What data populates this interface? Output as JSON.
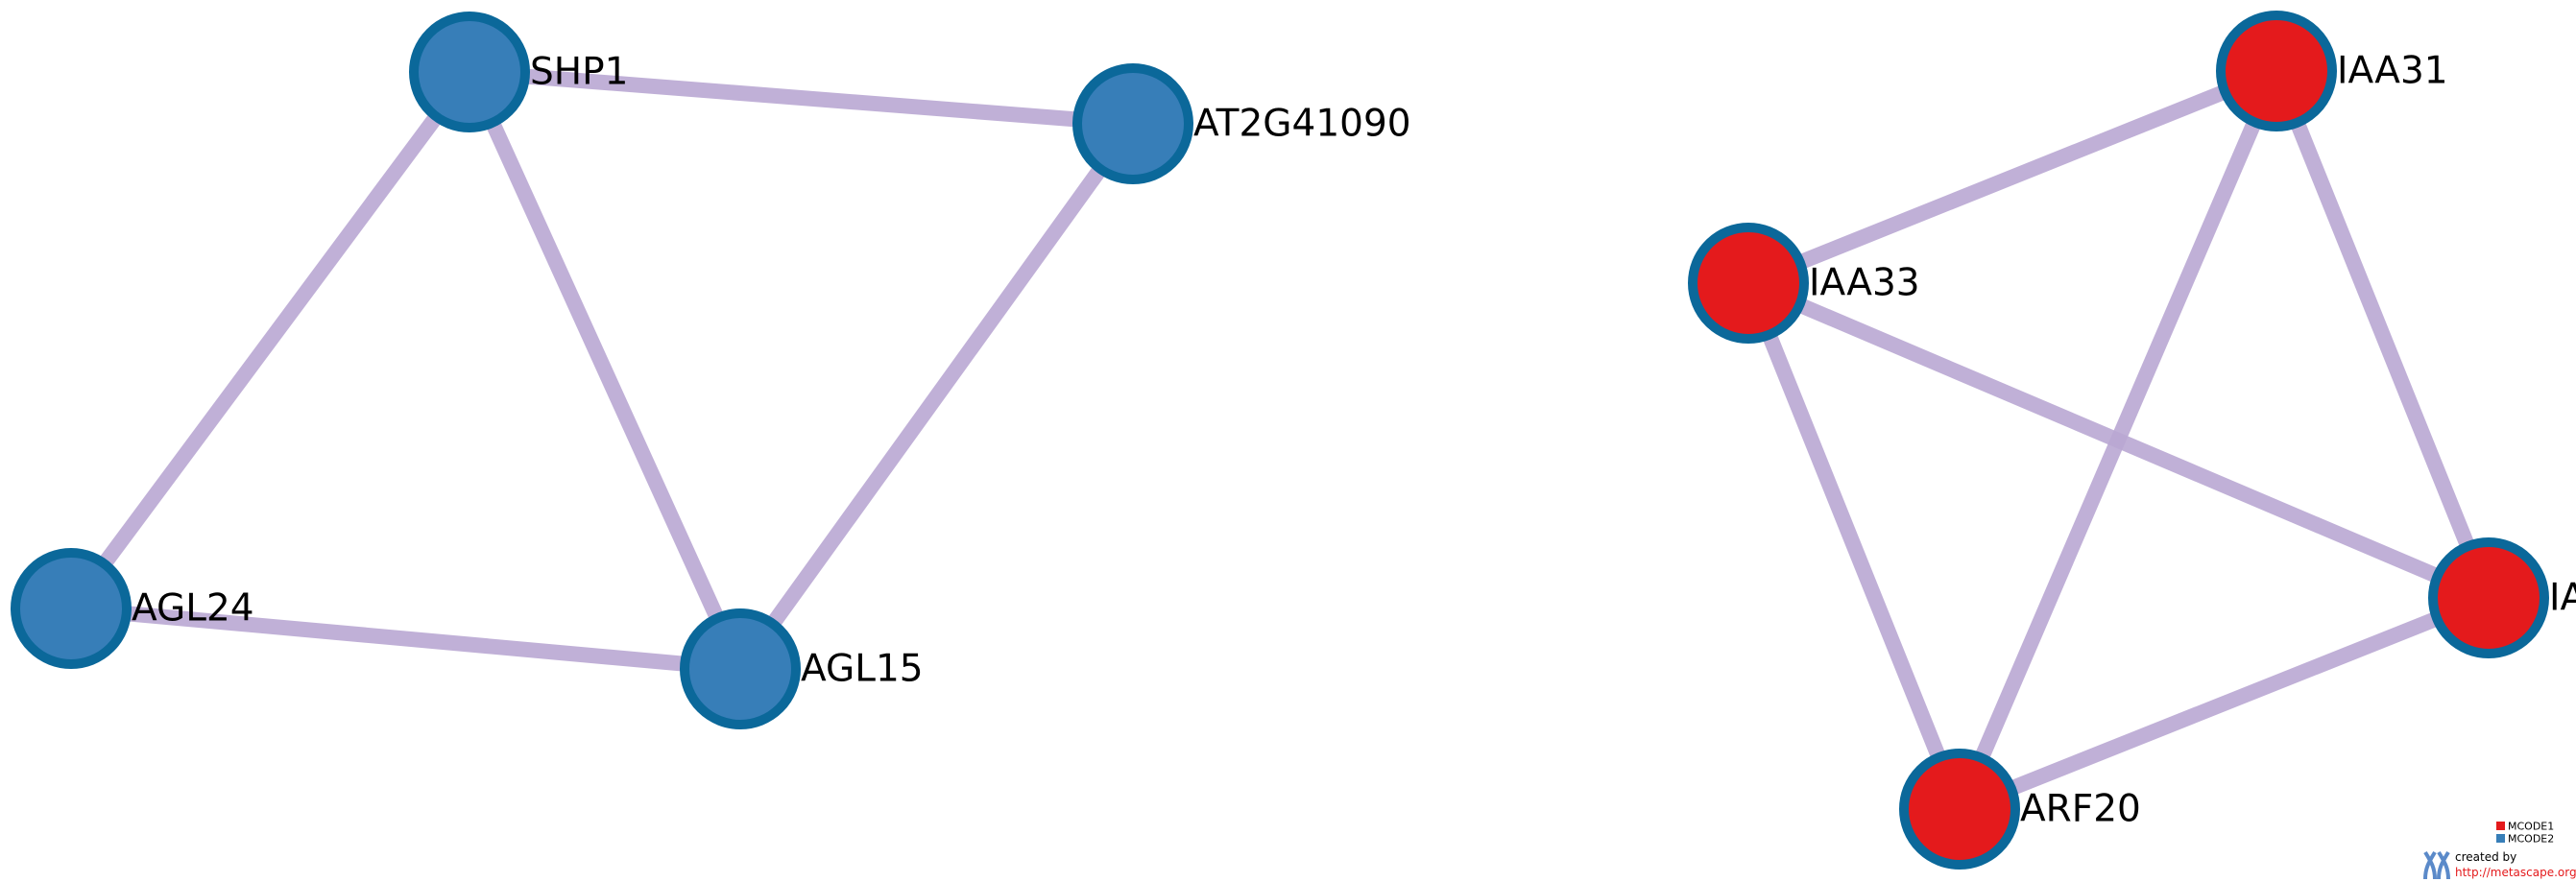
{
  "nodes": [
    {
      "id": "SHP1",
      "label": "SHP1",
      "cluster": "MCODE2"
    },
    {
      "id": "AT2G41090",
      "label": "AT2G41090",
      "cluster": "MCODE2"
    },
    {
      "id": "AGL24",
      "label": "AGL24",
      "cluster": "MCODE2"
    },
    {
      "id": "AGL15",
      "label": "AGL15",
      "cluster": "MCODE2"
    },
    {
      "id": "IAA31",
      "label": "IAA31",
      "cluster": "MCODE1"
    },
    {
      "id": "IAA33",
      "label": "IAA33",
      "cluster": "MCODE1"
    },
    {
      "id": "IA_clipped",
      "label": "IA",
      "cluster": "MCODE1"
    },
    {
      "id": "ARF20",
      "label": "ARF20",
      "cluster": "MCODE1"
    }
  ],
  "edges": [
    {
      "source": "SHP1",
      "target": "AT2G41090"
    },
    {
      "source": "SHP1",
      "target": "AGL24"
    },
    {
      "source": "SHP1",
      "target": "AGL15"
    },
    {
      "source": "AT2G41090",
      "target": "AGL15"
    },
    {
      "source": "AGL24",
      "target": "AGL15"
    },
    {
      "source": "IAA33",
      "target": "IAA31"
    },
    {
      "source": "IAA33",
      "target": "IA_clipped"
    },
    {
      "source": "IAA33",
      "target": "ARF20"
    },
    {
      "source": "IAA31",
      "target": "ARF20"
    },
    {
      "source": "IAA31",
      "target": "IA_clipped"
    },
    {
      "source": "IA_clipped",
      "target": "ARF20"
    }
  ],
  "clusters": {
    "MCODE1": {
      "fill": "#e41a1c"
    },
    "MCODE2": {
      "fill": "#377eb8"
    }
  },
  "style": {
    "node_border": "#0b689a",
    "edge_color": "#b9a7d3"
  },
  "legend": [
    {
      "label": "MCODE1",
      "color": "#e41a1c"
    },
    {
      "label": "MCODE2",
      "color": "#377eb8"
    }
  ],
  "credit": {
    "line1": "created by",
    "line2": "http://metascape.org",
    "line2_color": "#e41a1c",
    "logo_color": "#5b8ac9"
  }
}
